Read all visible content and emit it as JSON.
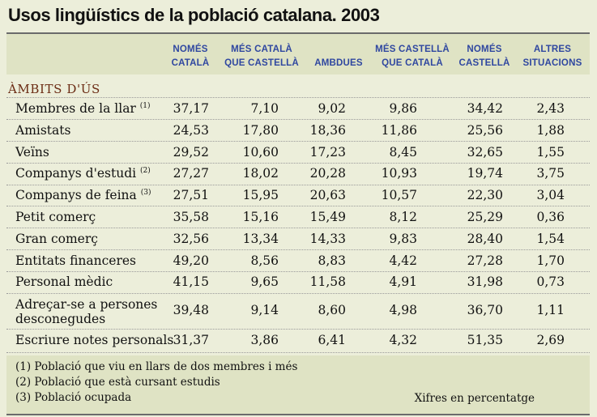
{
  "title": "Usos lingüístics de la població catalana. 2003",
  "columns": [
    [
      "NOMÉS",
      "CATALÀ"
    ],
    [
      "MÉS CATALÀ",
      "QUE CASTELLÀ"
    ],
    [
      "",
      "AMBDUES"
    ],
    [
      "MÉS CASTELLÀ",
      "QUE CATALÀ"
    ],
    [
      "NOMÉS",
      "CASTELLÀ"
    ],
    [
      "ALTRES",
      "SITUACIONS"
    ]
  ],
  "section_heading": "ÀMBITS D'ÚS",
  "rows": [
    {
      "label": "Membres de la llar",
      "note": "(1)",
      "values": [
        "37,17",
        "7,10",
        "9,02",
        "9,86",
        "34,42",
        "2,43"
      ]
    },
    {
      "label": "Amistats",
      "note": "",
      "values": [
        "24,53",
        "17,80",
        "18,36",
        "11,86",
        "25,56",
        "1,88"
      ]
    },
    {
      "label": "Veïns",
      "note": "",
      "values": [
        "29,52",
        "10,60",
        "17,23",
        "8,45",
        "32,65",
        "1,55"
      ]
    },
    {
      "label": "Companys d'estudi",
      "note": "(2)",
      "values": [
        "27,27",
        "18,02",
        "20,28",
        "10,93",
        "19,74",
        "3,75"
      ]
    },
    {
      "label": "Companys de feina",
      "note": "(3)",
      "values": [
        "27,51",
        "15,95",
        "20,63",
        "10,57",
        "22,30",
        "3,04"
      ]
    },
    {
      "label": "Petit comerç",
      "note": "",
      "values": [
        "35,58",
        "15,16",
        "15,49",
        "8,12",
        "25,29",
        "0,36"
      ]
    },
    {
      "label": "Gran comerç",
      "note": "",
      "values": [
        "32,56",
        "13,34",
        "14,33",
        "9,83",
        "28,40",
        "1,54"
      ]
    },
    {
      "label": "Entitats financeres",
      "note": "",
      "values": [
        "49,20",
        "8,56",
        "8,83",
        "4,42",
        "27,28",
        "1,70"
      ]
    },
    {
      "label": "Personal mèdic",
      "note": "",
      "values": [
        "41,15",
        "9,65",
        "11,58",
        "4,91",
        "31,98",
        "0,73"
      ]
    },
    {
      "label": "Adreçar-se a persones",
      "label2": "desconegudes",
      "note": "",
      "values": [
        "39,48",
        "9,14",
        "8,60",
        "4,98",
        "36,70",
        "1,11"
      ]
    },
    {
      "label": "Escriure notes personals",
      "note": "",
      "values": [
        "31,37",
        "3,86",
        "6,41",
        "4,32",
        "51,35",
        "2,69"
      ]
    }
  ],
  "footnotes": [
    "(1) Població que viu en llars de dos membres i més",
    "(2) Població que està cursant estudis",
    "(3) Població ocupada"
  ],
  "unit_note": "Xifres en percentatge",
  "colors": {
    "header_text": "#2f47a0",
    "section_text": "#6b2c14",
    "band": "#dfe3c4",
    "paper": "#eceeda"
  }
}
